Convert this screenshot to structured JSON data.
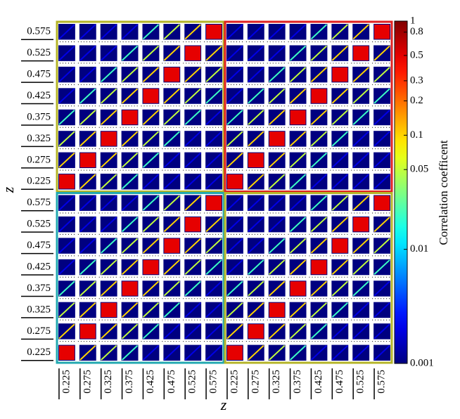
{
  "chart_data": {
    "type": "correlation-grid",
    "xlabel": "z",
    "ylabel": "z",
    "colorbar_label": "Correlation coefficent",
    "clim": [
      0.001,
      1
    ],
    "log_scale": true,
    "colormap": "jet",
    "cticks": [
      1,
      0.8,
      0.5,
      0.3,
      0.2,
      0.1,
      0.05,
      0.01,
      0.001
    ],
    "col_labels": [
      0.225,
      0.275,
      0.325,
      0.375,
      0.425,
      0.475,
      0.525,
      0.575,
      0.225,
      0.275,
      0.325,
      0.375,
      0.425,
      0.475,
      0.525,
      0.575
    ],
    "row_labels": [
      0.575,
      0.525,
      0.475,
      0.425,
      0.375,
      0.325,
      0.275,
      0.225,
      0.575,
      0.525,
      0.475,
      0.425,
      0.375,
      0.325,
      0.275,
      0.225
    ],
    "block_colors": [
      "#b4b428",
      "#e02020",
      "#22a8b0",
      "#b4b428"
    ],
    "matrix": [
      [
        0.002,
        0.002,
        0.002,
        0.002,
        0.02,
        0.05,
        0.1,
        0.5,
        0.002,
        0.002,
        0.002,
        0.002,
        0.02,
        0.05,
        0.1,
        0.5
      ],
      [
        0.002,
        0.002,
        0.002,
        0.02,
        0.05,
        0.1,
        0.5,
        0.1,
        0.002,
        0.002,
        0.002,
        0.02,
        0.05,
        0.1,
        0.5,
        0.1
      ],
      [
        0.002,
        0.002,
        0.02,
        0.05,
        0.1,
        0.5,
        0.1,
        0.05,
        0.002,
        0.002,
        0.02,
        0.05,
        0.1,
        0.5,
        0.1,
        0.05
      ],
      [
        0.002,
        0.02,
        0.05,
        0.1,
        0.5,
        0.1,
        0.05,
        0.02,
        0.002,
        0.02,
        0.05,
        0.1,
        0.5,
        0.1,
        0.05,
        0.02
      ],
      [
        0.02,
        0.05,
        0.1,
        0.5,
        0.1,
        0.05,
        0.02,
        0.002,
        0.02,
        0.05,
        0.1,
        0.5,
        0.1,
        0.05,
        0.02,
        0.002
      ],
      [
        0.05,
        0.1,
        0.5,
        0.1,
        0.05,
        0.02,
        0.002,
        0.002,
        0.05,
        0.1,
        0.5,
        0.1,
        0.05,
        0.02,
        0.002,
        0.002
      ],
      [
        0.1,
        0.5,
        0.1,
        0.05,
        0.02,
        0.002,
        0.002,
        0.002,
        0.1,
        0.5,
        0.1,
        0.05,
        0.02,
        0.002,
        0.002,
        0.002
      ],
      [
        0.5,
        0.1,
        0.05,
        0.02,
        0.002,
        0.002,
        0.002,
        0.002,
        0.5,
        0.1,
        0.05,
        0.02,
        0.002,
        0.002,
        0.002,
        0.002
      ],
      [
        0.002,
        0.002,
        0.002,
        0.002,
        0.02,
        0.05,
        0.1,
        0.5,
        0.002,
        0.002,
        0.002,
        0.002,
        0.02,
        0.05,
        0.1,
        0.5
      ],
      [
        0.002,
        0.002,
        0.002,
        0.02,
        0.05,
        0.1,
        0.5,
        0.1,
        0.002,
        0.002,
        0.002,
        0.02,
        0.05,
        0.1,
        0.5,
        0.1
      ],
      [
        0.002,
        0.002,
        0.02,
        0.05,
        0.1,
        0.5,
        0.1,
        0.05,
        0.002,
        0.002,
        0.02,
        0.05,
        0.1,
        0.5,
        0.1,
        0.05
      ],
      [
        0.002,
        0.02,
        0.05,
        0.1,
        0.5,
        0.1,
        0.05,
        0.02,
        0.002,
        0.02,
        0.05,
        0.1,
        0.5,
        0.1,
        0.05,
        0.02
      ],
      [
        0.02,
        0.05,
        0.1,
        0.5,
        0.1,
        0.05,
        0.02,
        0.002,
        0.02,
        0.05,
        0.1,
        0.5,
        0.1,
        0.05,
        0.02,
        0.002
      ],
      [
        0.05,
        0.1,
        0.5,
        0.1,
        0.05,
        0.02,
        0.002,
        0.002,
        0.05,
        0.1,
        0.5,
        0.1,
        0.05,
        0.02,
        0.002,
        0.002
      ],
      [
        0.1,
        0.5,
        0.1,
        0.05,
        0.02,
        0.002,
        0.002,
        0.002,
        0.1,
        0.5,
        0.1,
        0.05,
        0.02,
        0.002,
        0.002,
        0.002
      ],
      [
        0.5,
        0.1,
        0.05,
        0.02,
        0.002,
        0.002,
        0.002,
        0.002,
        0.5,
        0.1,
        0.05,
        0.02,
        0.002,
        0.002,
        0.002,
        0.002
      ]
    ]
  }
}
